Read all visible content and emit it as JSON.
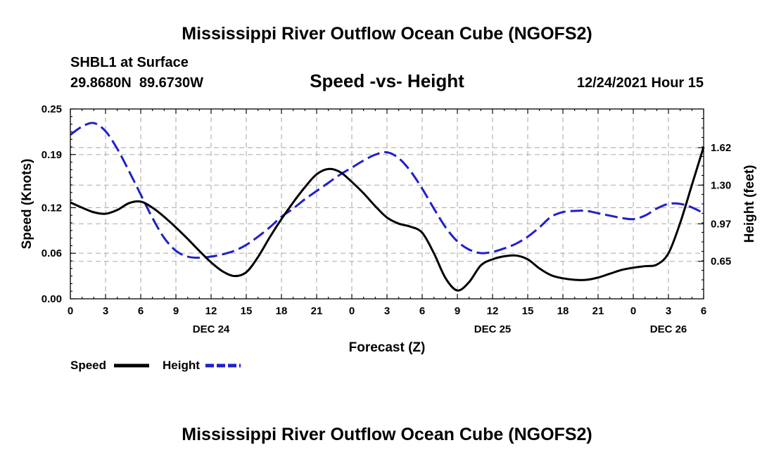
{
  "chart_data": {
    "type": "line",
    "title": "Mississippi River Outflow Ocean Cube (NGOFS2)",
    "footer_title": "Mississippi River Outflow Ocean Cube (NGOFS2)",
    "subtitle": "Speed -vs- Height",
    "station": "SHBL1 at Surface",
    "location": "29.8680N  89.6730W",
    "datetime": "12/24/2021 Hour 15",
    "xlabel": "Forecast (Z)",
    "ylabel_left": "Speed (Knots)",
    "ylabel_right": "Height (feet)",
    "x_ticks": [
      0,
      3,
      6,
      9,
      12,
      15,
      18,
      21,
      24,
      27,
      30,
      33,
      36,
      39,
      42,
      45,
      48,
      51,
      54
    ],
    "x_tick_labels": [
      "0",
      "3",
      "6",
      "9",
      "12",
      "15",
      "18",
      "21",
      "0",
      "3",
      "6",
      "9",
      "12",
      "15",
      "18",
      "21",
      "0",
      "3",
      "6"
    ],
    "date_labels": [
      {
        "x": 12,
        "label": "DEC 24"
      },
      {
        "x": 36,
        "label": "DEC 25"
      },
      {
        "x": 51,
        "label": "DEC 26"
      }
    ],
    "xlim": [
      0,
      54
    ],
    "ylim_left": [
      0,
      0.25
    ],
    "left_ticks": [
      0.0,
      0.06,
      0.12,
      0.19,
      0.25
    ],
    "left_tick_labels": [
      "0.00",
      "0.06",
      "0.12",
      "0.19",
      "0.25"
    ],
    "ylim_right": [
      0.33,
      1.95
    ],
    "right_ticks": [
      0.65,
      0.97,
      1.3,
      1.62
    ],
    "right_tick_labels": [
      "0.65",
      "0.97",
      "1.30",
      "1.62"
    ],
    "series": [
      {
        "name": "Speed",
        "axis": "left",
        "color": "#000000",
        "style": "solid",
        "x": [
          0,
          1,
          2,
          3,
          4,
          5,
          6,
          7,
          8,
          9,
          10,
          11,
          12,
          13,
          14,
          15,
          16,
          17,
          18,
          19,
          20,
          21,
          22,
          23,
          24,
          25,
          26,
          27,
          28,
          29,
          30,
          31,
          32,
          33,
          34,
          35,
          36,
          37,
          38,
          39,
          40,
          41,
          42,
          43,
          44,
          45,
          46,
          47,
          48,
          49,
          50,
          51,
          52,
          53,
          54
        ],
        "values": [
          0.127,
          0.12,
          0.114,
          0.112,
          0.117,
          0.126,
          0.128,
          0.12,
          0.108,
          0.094,
          0.079,
          0.063,
          0.048,
          0.036,
          0.03,
          0.035,
          0.055,
          0.081,
          0.105,
          0.127,
          0.147,
          0.164,
          0.171,
          0.167,
          0.154,
          0.139,
          0.122,
          0.107,
          0.099,
          0.095,
          0.087,
          0.06,
          0.027,
          0.011,
          0.022,
          0.044,
          0.052,
          0.056,
          0.057,
          0.052,
          0.04,
          0.031,
          0.027,
          0.025,
          0.025,
          0.028,
          0.033,
          0.038,
          0.041,
          0.043,
          0.045,
          0.06,
          0.1,
          0.15,
          0.2
        ]
      },
      {
        "name": "Height",
        "axis": "right",
        "color": "#1f1fcc",
        "style": "dashed",
        "x": [
          0,
          1,
          2,
          3,
          4,
          5,
          6,
          7,
          8,
          9,
          10,
          11,
          12,
          13,
          14,
          15,
          16,
          17,
          18,
          19,
          20,
          21,
          22,
          23,
          24,
          25,
          26,
          27,
          28,
          29,
          30,
          31,
          32,
          33,
          34,
          35,
          36,
          37,
          38,
          39,
          40,
          41,
          42,
          43,
          44,
          45,
          46,
          47,
          48,
          49,
          50,
          51,
          52,
          53,
          54
        ],
        "values": [
          1.73,
          1.8,
          1.83,
          1.76,
          1.61,
          1.42,
          1.22,
          1.02,
          0.85,
          0.74,
          0.69,
          0.68,
          0.69,
          0.71,
          0.74,
          0.79,
          0.86,
          0.94,
          1.03,
          1.1,
          1.18,
          1.25,
          1.32,
          1.39,
          1.45,
          1.51,
          1.56,
          1.58,
          1.53,
          1.42,
          1.27,
          1.1,
          0.94,
          0.82,
          0.75,
          0.72,
          0.73,
          0.76,
          0.8,
          0.86,
          0.94,
          1.03,
          1.07,
          1.08,
          1.08,
          1.06,
          1.04,
          1.02,
          1.01,
          1.04,
          1.1,
          1.14,
          1.14,
          1.11,
          1.06
        ]
      }
    ],
    "legend": [
      {
        "label": "Speed",
        "color": "#000000",
        "style": "solid"
      },
      {
        "label": "Height",
        "color": "#1f1fcc",
        "style": "dashed"
      }
    ],
    "grid": true,
    "legend_position": "bottom-left"
  }
}
